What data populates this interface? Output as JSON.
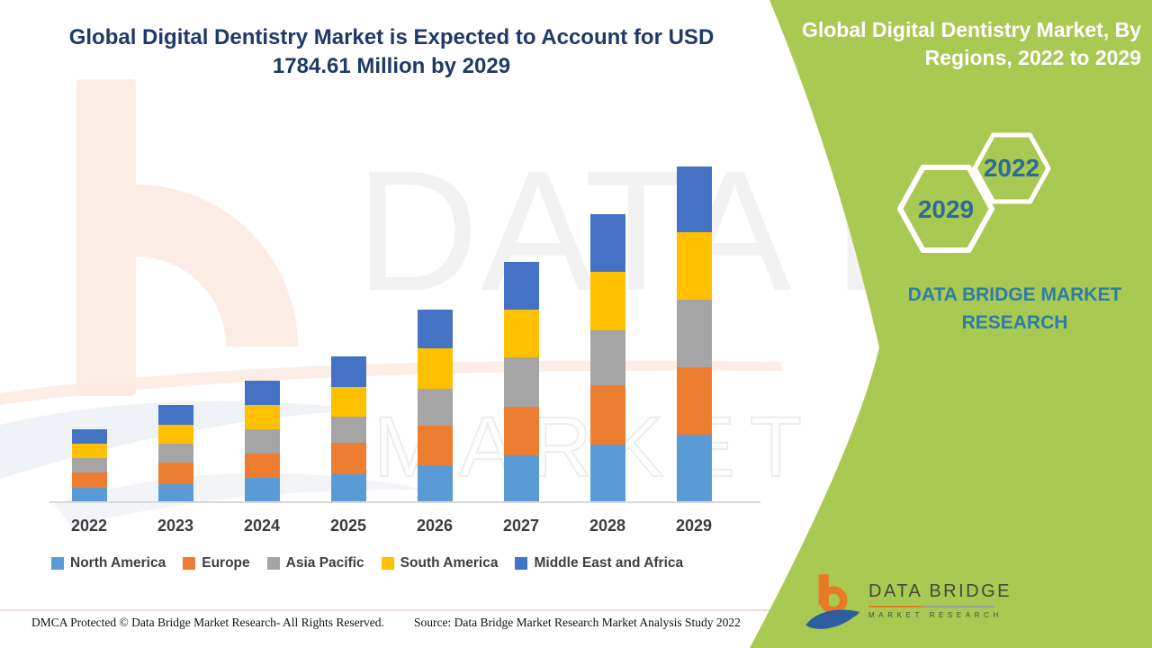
{
  "header": {
    "title_line1": "Global Digital Dentistry Market is Expected to Account for USD",
    "title_line2": "1784.61 Million by 2029"
  },
  "side_panel": {
    "title_line1": "Global Digital Dentistry Market, By",
    "title_line2": "Regions, 2022 to 2029",
    "hexagon_start_year": "2022",
    "hexagon_end_year": "2029",
    "brand_line1": "DATA BRIDGE MARKET",
    "brand_line2": "RESEARCH",
    "panel_color": "#A5C74C"
  },
  "watermark": {
    "line1": "DATA BRIDGE",
    "line2": "MARKET RESEARCH"
  },
  "logo": {
    "name": "DATA BRIDGE",
    "tagline": "MARKET RESEARCH"
  },
  "footer": {
    "dmca": "DMCA Protected © Data Bridge Market Research- All Rights Reserved.",
    "source": "Source: Data Bridge Market Research Market Analysis Study 2022"
  },
  "chart_data": {
    "type": "bar",
    "stacked": true,
    "title": "Global Digital Dentistry Market, By Regions, 2022 to 2029",
    "unit": "USD Million",
    "categories": [
      "2022",
      "2023",
      "2024",
      "2025",
      "2026",
      "2027",
      "2028",
      "2029"
    ],
    "series": [
      {
        "name": "North America",
        "color": "#5B9BD5",
        "values": [
          77,
          96,
          129,
          148,
          196,
          249,
          306,
          360
        ]
      },
      {
        "name": "Europe",
        "color": "#ED7D31",
        "values": [
          81,
          115,
          129,
          167,
          211,
          258,
          316,
          359
        ]
      },
      {
        "name": "Asia Pacific",
        "color": "#A5A5A5",
        "values": [
          77,
          100,
          129,
          139,
          196,
          263,
          292,
          359
        ]
      },
      {
        "name": "South America",
        "color": "#FFC000",
        "values": [
          77,
          100,
          129,
          158,
          215,
          254,
          311,
          359
        ]
      },
      {
        "name": "Middle East and Africa",
        "color": "#4472C4",
        "values": [
          77,
          105,
          130,
          163,
          206,
          254,
          306,
          347.61
        ]
      }
    ],
    "totals": [
      389,
      516,
      646,
      775,
      1024,
      1278,
      1531,
      1784.61
    ],
    "highlighted_value": "USD 1784.61 Million by 2029",
    "values_note": "Per-region values estimated from bar segment heights; only the 2029 total is printed on the graphic",
    "legend_position": "bottom",
    "gridlines": false,
    "y_axis": "hidden"
  }
}
